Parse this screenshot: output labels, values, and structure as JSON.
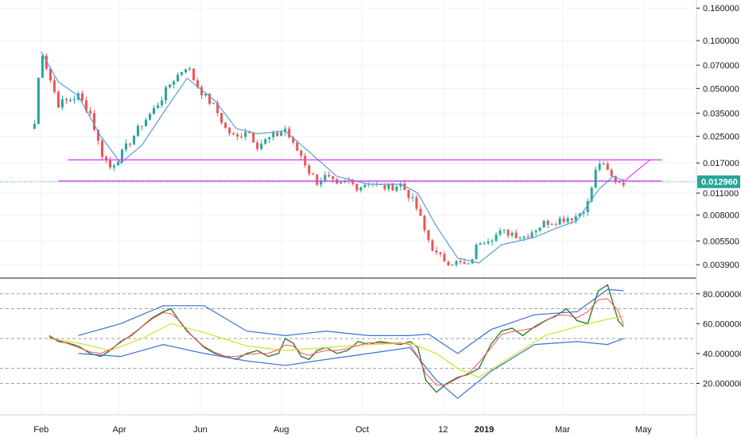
{
  "chart_data": [
    {
      "type": "candlestick",
      "panel": "price",
      "y_scale": "log",
      "ylim": [
        0.00325,
        0.18
      ],
      "y_ticks": [
        "0.160000",
        "0.100000",
        "0.070000",
        "0.050000",
        "0.035000",
        "0.025000",
        "0.017000",
        "0.011000",
        "0.008000",
        "0.005500",
        "0.003900"
      ],
      "last_price_label": "0.012960",
      "last_price": 0.01296,
      "colors": {
        "up": "#26a69a",
        "down": "#ef5350",
        "ma": "#5b9bd5",
        "support": "#e040fb",
        "price_tag": "#26a69a",
        "grid": "#f0f3fa"
      },
      "series": [
        {
          "name": "",
          "kind": "close_path",
          "x": [
            "2018-01-27",
            "2018-02-01",
            "2018-02-07",
            "2018-02-14",
            "2018-02-21",
            "2018-03-01",
            "2018-03-10",
            "2018-03-18",
            "2018-03-25",
            "2018-04-02",
            "2018-04-10",
            "2018-04-18",
            "2018-04-26",
            "2018-05-04",
            "2018-05-10",
            "2018-05-16",
            "2018-05-22",
            "2018-05-28",
            "2018-06-04",
            "2018-06-12",
            "2018-06-20",
            "2018-06-28",
            "2018-07-06",
            "2018-07-14",
            "2018-07-22",
            "2018-07-30",
            "2018-08-04",
            "2018-08-10",
            "2018-08-16",
            "2018-08-22",
            "2018-08-28",
            "2018-09-04",
            "2018-09-12",
            "2018-09-20",
            "2018-09-28",
            "2018-10-06",
            "2018-10-14",
            "2018-10-22",
            "2018-10-30",
            "2018-11-06",
            "2018-11-12",
            "2018-11-18",
            "2018-11-26",
            "2018-12-04",
            "2018-12-12",
            "2018-12-20",
            "2018-12-28",
            "2019-01-06",
            "2019-01-14",
            "2019-01-22",
            "2019-01-30",
            "2019-02-08",
            "2019-02-16",
            "2019-02-24",
            "2019-03-04",
            "2019-03-12",
            "2019-03-20",
            "2019-03-28",
            "2019-04-04",
            "2019-04-08",
            "2019-04-12",
            "2019-04-16"
          ],
          "y": [
            0.03,
            0.09,
            0.06,
            0.04,
            0.042,
            0.045,
            0.035,
            0.02,
            0.016,
            0.019,
            0.024,
            0.03,
            0.036,
            0.045,
            0.055,
            0.062,
            0.07,
            0.055,
            0.045,
            0.038,
            0.028,
            0.024,
            0.028,
            0.022,
            0.024,
            0.026,
            0.028,
            0.022,
            0.019,
            0.015,
            0.013,
            0.014,
            0.012,
            0.013,
            0.012,
            0.013,
            0.012,
            0.012,
            0.0125,
            0.0105,
            0.0085,
            0.006,
            0.0045,
            0.0041,
            0.004,
            0.0038,
            0.0055,
            0.0058,
            0.0062,
            0.0062,
            0.0058,
            0.0065,
            0.0072,
            0.0074,
            0.0077,
            0.0079,
            0.0095,
            0.0175,
            0.015,
            0.0135,
            0.013,
            0.013
          ]
        },
        {
          "name": "",
          "kind": "moving_average",
          "x": [
            "2018-02-01",
            "2018-02-14",
            "2018-03-01",
            "2018-03-18",
            "2018-04-02",
            "2018-04-18",
            "2018-05-04",
            "2018-05-22",
            "2018-06-12",
            "2018-06-28",
            "2018-07-14",
            "2018-08-04",
            "2018-08-22",
            "2018-09-12",
            "2018-10-06",
            "2018-10-30",
            "2018-11-12",
            "2018-11-26",
            "2018-12-12",
            "2018-12-28",
            "2019-01-14",
            "2019-02-08",
            "2019-02-24",
            "2019-03-12",
            "2019-03-28",
            "2019-04-08",
            "2019-04-16"
          ],
          "y": [
            0.085,
            0.055,
            0.045,
            0.025,
            0.017,
            0.022,
            0.035,
            0.058,
            0.042,
            0.028,
            0.026,
            0.027,
            0.02,
            0.014,
            0.0125,
            0.0125,
            0.011,
            0.0068,
            0.0043,
            0.004,
            0.0052,
            0.0058,
            0.0066,
            0.0074,
            0.0115,
            0.014,
            0.0132
          ]
        }
      ],
      "lines": [
        {
          "kind": "horizontal",
          "y": 0.0178,
          "x_start": "2018-02-21",
          "x_end": "2019-05-15"
        },
        {
          "kind": "horizontal",
          "y": 0.0131,
          "x_start": "2018-02-14",
          "x_end": "2019-05-15"
        },
        {
          "kind": "trend",
          "x": [
            "2019-04-16",
            "2019-05-06"
          ],
          "y": [
            0.013,
            0.0178
          ]
        }
      ]
    },
    {
      "type": "line",
      "panel": "indicator",
      "ylim": [
        0,
        90
      ],
      "y_ticks": [
        "80.000000",
        "60.000000",
        "40.000000",
        "20.000000"
      ],
      "y_tick_values": [
        80,
        60,
        40,
        20
      ],
      "dashed_levels": [
        80,
        70,
        50,
        30,
        20
      ],
      "colors": {
        "main": "#2e7d32",
        "signal": "#ff5252",
        "average": "#c6e82b",
        "bands": "#3f6fd8",
        "levels": "#9e9e9e"
      },
      "series": [
        {
          "name": "",
          "kind": "indicator",
          "x": [
            "2018-02-07",
            "2018-02-14",
            "2018-02-21",
            "2018-03-01",
            "2018-03-10",
            "2018-03-18",
            "2018-03-25",
            "2018-04-02",
            "2018-04-10",
            "2018-04-18",
            "2018-04-26",
            "2018-05-04",
            "2018-05-10",
            "2018-05-16",
            "2018-05-22",
            "2018-05-28",
            "2018-06-04",
            "2018-06-12",
            "2018-06-20",
            "2018-06-28",
            "2018-07-06",
            "2018-07-14",
            "2018-07-22",
            "2018-07-30",
            "2018-08-04",
            "2018-08-10",
            "2018-08-16",
            "2018-08-22",
            "2018-08-28",
            "2018-09-04",
            "2018-09-12",
            "2018-09-20",
            "2018-09-28",
            "2018-10-06",
            "2018-10-14",
            "2018-10-22",
            "2018-10-30",
            "2018-11-06",
            "2018-11-12",
            "2018-11-18",
            "2018-11-26",
            "2018-12-04",
            "2018-12-12",
            "2018-12-20",
            "2018-12-28",
            "2019-01-06",
            "2019-01-14",
            "2019-01-22",
            "2019-01-30",
            "2019-02-08",
            "2019-02-16",
            "2019-02-24",
            "2019-03-04",
            "2019-03-12",
            "2019-03-20",
            "2019-03-28",
            "2019-04-04",
            "2019-04-12",
            "2019-04-16"
          ],
          "y": [
            52,
            48,
            47,
            45,
            40,
            38,
            42,
            48,
            52,
            58,
            64,
            68,
            70,
            62,
            55,
            50,
            44,
            40,
            38,
            36,
            40,
            42,
            38,
            40,
            50,
            47,
            38,
            36,
            42,
            44,
            40,
            42,
            48,
            46,
            48,
            47,
            46,
            48,
            44,
            22,
            14,
            20,
            24,
            26,
            30,
            46,
            55,
            57,
            52,
            58,
            62,
            65,
            70,
            62,
            60,
            82,
            86,
            62,
            58
          ]
        },
        {
          "name": "",
          "kind": "average",
          "x": [
            "2018-02-07",
            "2018-03-01",
            "2018-03-25",
            "2018-04-18",
            "2018-05-10",
            "2018-06-04",
            "2018-07-06",
            "2018-08-04",
            "2018-09-04",
            "2018-10-06",
            "2018-11-06",
            "2018-11-26",
            "2018-12-12",
            "2018-12-28",
            "2019-01-22",
            "2019-02-16",
            "2019-03-12",
            "2019-04-04",
            "2019-04-16"
          ],
          "y": [
            50,
            47,
            42,
            50,
            60,
            54,
            45,
            42,
            44,
            46,
            47,
            40,
            30,
            24,
            38,
            52,
            58,
            63,
            65
          ]
        },
        {
          "name": "",
          "kind": "upper_band",
          "x": [
            "2018-03-01",
            "2018-04-02",
            "2018-05-04",
            "2018-06-04",
            "2018-07-06",
            "2018-08-04",
            "2018-09-04",
            "2018-10-06",
            "2018-11-06",
            "2018-11-20",
            "2018-12-12",
            "2019-01-06",
            "2019-02-08",
            "2019-03-12",
            "2019-04-04",
            "2019-04-16"
          ],
          "y": [
            52,
            60,
            72,
            72,
            55,
            52,
            55,
            52,
            52,
            53,
            40,
            56,
            66,
            68,
            83,
            82
          ]
        },
        {
          "name": "",
          "kind": "lower_band",
          "x": [
            "2018-03-01",
            "2018-04-02",
            "2018-05-04",
            "2018-06-04",
            "2018-07-06",
            "2018-08-04",
            "2018-09-04",
            "2018-10-06",
            "2018-11-06",
            "2018-11-26",
            "2018-12-12",
            "2019-01-06",
            "2019-02-08",
            "2019-03-12",
            "2019-04-04",
            "2019-04-16"
          ],
          "y": [
            40,
            38,
            46,
            40,
            35,
            32,
            36,
            40,
            44,
            22,
            10,
            28,
            46,
            48,
            46,
            50
          ]
        }
      ]
    }
  ],
  "x_axis": {
    "range": [
      "2018-01-01",
      "2019-06-10"
    ],
    "labels": [
      {
        "text": "Feb",
        "date": "2018-02-01",
        "bold": false
      },
      {
        "text": "Apr",
        "date": "2018-04-01",
        "bold": false
      },
      {
        "text": "Jun",
        "date": "2018-06-01",
        "bold": false
      },
      {
        "text": "Aug",
        "date": "2018-08-01",
        "bold": false
      },
      {
        "text": "Oct",
        "date": "2018-10-01",
        "bold": false
      },
      {
        "text": "12",
        "date": "2018-12-01",
        "bold": false
      },
      {
        "text": "2019",
        "date": "2019-01-01",
        "bold": true
      },
      {
        "text": "Mar",
        "date": "2019-03-01",
        "bold": false
      },
      {
        "text": "May",
        "date": "2019-05-01",
        "bold": false
      }
    ]
  }
}
